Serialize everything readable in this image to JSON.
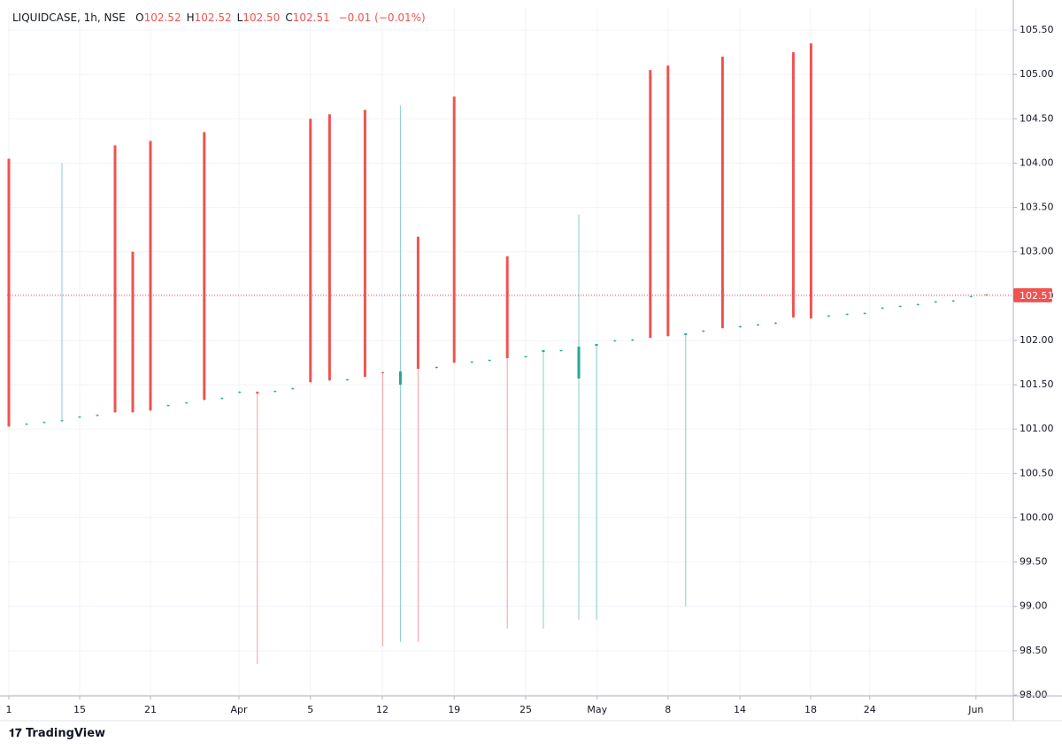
{
  "chart_data": {
    "type": "candlestick",
    "legend": {
      "symbol": "LIQUIDCASE, 1h, NSE",
      "ohlc": [
        {
          "key": "O",
          "value": "102.52"
        },
        {
          "key": "H",
          "value": "102.52"
        },
        {
          "key": "L",
          "value": "102.50"
        },
        {
          "key": "C",
          "value": "102.51"
        }
      ],
      "change": "−0.01 (−0.01%)"
    },
    "branding": "TradingView",
    "up_color": "#26a69a",
    "down_color": "#ef5350",
    "grid": true,
    "last_price": 102.51,
    "xlim": [
      -0.25,
      141.875
    ],
    "xticks": [
      {
        "value": 0,
        "label": "1"
      },
      {
        "value": 10,
        "label": "15"
      },
      {
        "value": 20,
        "label": "21"
      },
      {
        "value": 32.5,
        "label": "Apr"
      },
      {
        "value": 42.6,
        "label": "5"
      },
      {
        "value": 52.75,
        "label": "12"
      },
      {
        "value": 62.9,
        "label": "19"
      },
      {
        "value": 73,
        "label": "25"
      },
      {
        "value": 83.1,
        "label": "May"
      },
      {
        "value": 93.1,
        "label": "8"
      },
      {
        "value": 103.25,
        "label": "14"
      },
      {
        "value": 113.25,
        "label": "18"
      },
      {
        "value": 121.6,
        "label": "24"
      },
      {
        "value": 136.6,
        "label": "Jun"
      }
    ],
    "ylim": [
      97.99,
      105.76
    ],
    "yticks": [
      {
        "value": 98,
        "label": "98.00"
      },
      {
        "value": 98.5,
        "label": "98.50"
      },
      {
        "value": 99,
        "label": "99.00"
      },
      {
        "value": 99.5,
        "label": "99.50"
      },
      {
        "value": 100,
        "label": "100.00"
      },
      {
        "value": 100.5,
        "label": "100.50"
      },
      {
        "value": 101,
        "label": "101.00"
      },
      {
        "value": 101.5,
        "label": "101.50"
      },
      {
        "value": 102,
        "label": "102.00"
      },
      {
        "value": 102.5,
        "label": "102.50"
      },
      {
        "value": 103,
        "label": "103.00"
      },
      {
        "value": 103.5,
        "label": "103.50"
      },
      {
        "value": 104,
        "label": "104.00"
      },
      {
        "value": 104.5,
        "label": "104.50"
      },
      {
        "value": 105,
        "label": "105.00"
      },
      {
        "value": 105.5,
        "label": "105.50"
      }
    ],
    "x": [
      0,
      2.5,
      5,
      7.5,
      10,
      12.5,
      15,
      17.5,
      20,
      22.5,
      25.1,
      27.6,
      30.1,
      32.6,
      35.1,
      37.6,
      40.1,
      42.6,
      45.3,
      47.8,
      50.3,
      52.8,
      55.3,
      57.8,
      60.4,
      62.9,
      65.4,
      67.9,
      70.4,
      73,
      75.5,
      78,
      80.5,
      83,
      85.6,
      88.1,
      90.6,
      93.1,
      95.6,
      98.1,
      100.8,
      103.3,
      105.8,
      108.3,
      110.8,
      113.3,
      115.8,
      118.4,
      120.9,
      123.4,
      125.9,
      128.4,
      130.9,
      133.4,
      135.9,
      138.1
    ],
    "open": [
      104.05,
      101.05,
      101.07,
      101.09,
      101.13,
      101.15,
      104.2,
      103.0,
      104.25,
      101.26,
      101.29,
      104.35,
      101.34,
      101.41,
      101.42,
      101.42,
      101.45,
      104.5,
      104.55,
      101.55,
      104.6,
      101.64,
      101.5,
      103.17,
      101.69,
      104.75,
      101.75,
      101.77,
      102.95,
      101.81,
      101.87,
      101.88,
      101.57,
      101.94,
      101.99,
      102.0,
      105.05,
      105.1,
      102.06,
      102.1,
      105.2,
      102.15,
      102.17,
      102.19,
      105.25,
      105.35,
      102.27,
      102.29,
      102.3,
      102.36,
      102.38,
      102.4,
      102.43,
      102.44,
      102.49,
      102.52
    ],
    "high": [
      104.05,
      101.07,
      101.09,
      104.0,
      101.15,
      101.17,
      104.2,
      103.0,
      104.25,
      101.28,
      101.31,
      104.35,
      101.36,
      101.43,
      101.43,
      101.44,
      101.47,
      104.5,
      104.55,
      101.57,
      104.6,
      101.65,
      104.65,
      103.17,
      101.71,
      104.75,
      101.77,
      101.79,
      102.95,
      101.83,
      101.89,
      101.9,
      103.42,
      101.96,
      102.01,
      102.02,
      105.05,
      105.1,
      102.08,
      102.12,
      105.2,
      102.17,
      102.19,
      102.21,
      105.25,
      105.35,
      102.29,
      102.31,
      102.32,
      102.38,
      102.4,
      102.42,
      102.45,
      102.46,
      102.51,
      102.52
    ],
    "low": [
      101.02,
      101.04,
      101.06,
      101.08,
      101.12,
      101.14,
      101.18,
      101.18,
      101.2,
      101.25,
      101.28,
      101.32,
      101.33,
      101.4,
      98.35,
      101.41,
      101.44,
      101.52,
      101.54,
      101.54,
      101.58,
      98.55,
      98.6,
      98.6,
      101.68,
      101.74,
      101.74,
      101.76,
      98.75,
      101.8,
      98.75,
      101.87,
      98.85,
      98.85,
      101.98,
      101.99,
      102.02,
      102.04,
      99.0,
      102.09,
      102.13,
      102.14,
      102.16,
      102.18,
      102.25,
      102.24,
      102.26,
      102.28,
      102.29,
      102.35,
      102.37,
      102.39,
      102.42,
      102.43,
      102.48,
      102.5
    ],
    "close": [
      101.03,
      101.06,
      101.08,
      101.1,
      101.14,
      101.16,
      101.19,
      101.19,
      101.21,
      101.27,
      101.3,
      101.33,
      101.35,
      101.42,
      101.4,
      101.43,
      101.46,
      101.53,
      101.55,
      101.56,
      101.59,
      101.63,
      101.65,
      101.68,
      101.7,
      101.75,
      101.76,
      101.78,
      101.8,
      101.82,
      101.89,
      101.89,
      101.93,
      101.96,
      102.0,
      102.01,
      102.03,
      102.05,
      102.08,
      102.11,
      102.14,
      102.16,
      102.18,
      102.2,
      102.26,
      102.25,
      102.28,
      102.3,
      102.31,
      102.37,
      102.39,
      102.41,
      102.44,
      102.45,
      102.5,
      102.51
    ]
  }
}
